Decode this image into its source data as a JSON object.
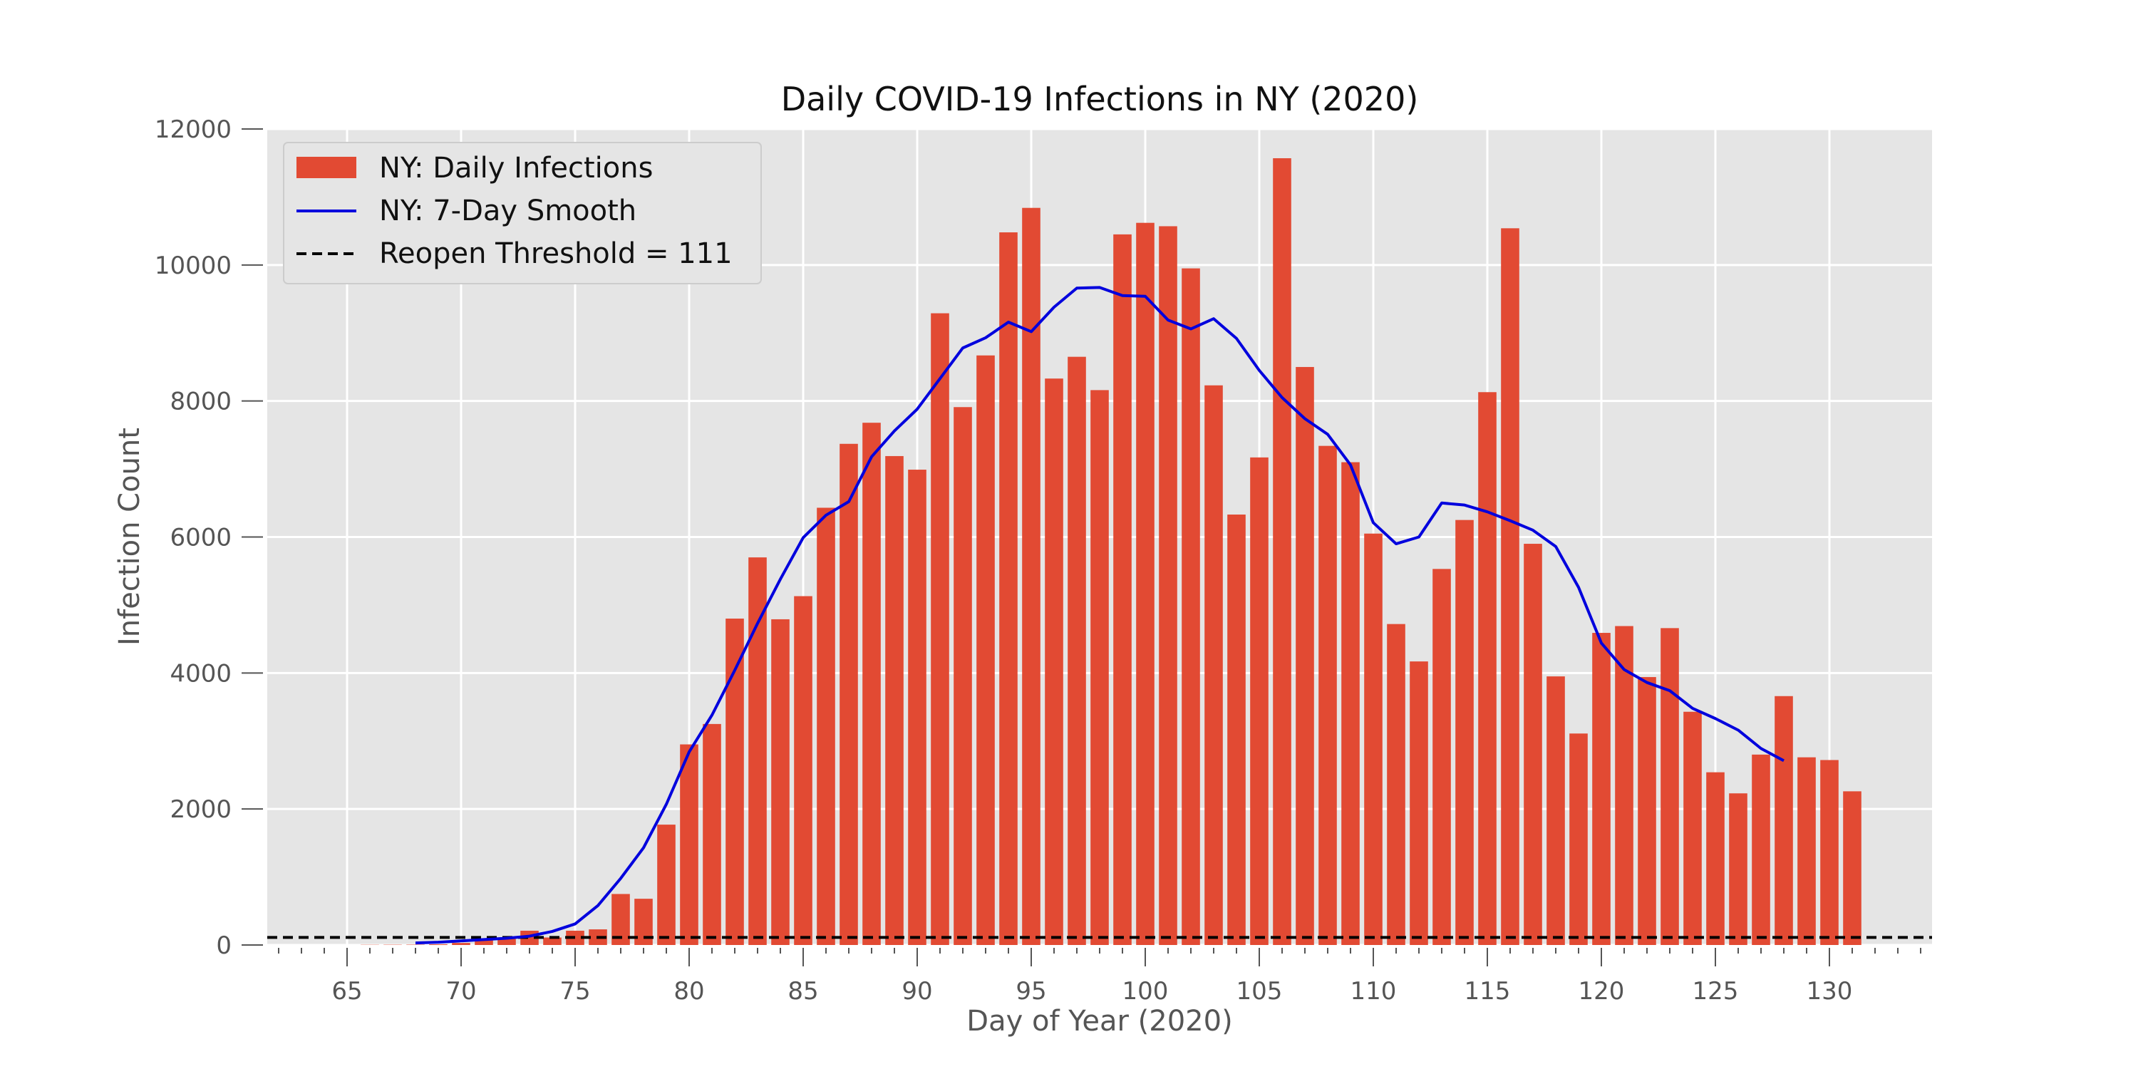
{
  "chart_data": {
    "type": "bar",
    "title": "Daily COVID-19 Infections in NY (2020)",
    "xlabel": "Day of Year (2020)",
    "ylabel": "Infection Count",
    "xlim": [
      61.5,
      134.5
    ],
    "ylim": [
      0,
      12000
    ],
    "xticks": [
      65,
      70,
      75,
      80,
      85,
      90,
      95,
      100,
      105,
      110,
      115,
      120,
      125,
      130
    ],
    "yticks": [
      0,
      2000,
      4000,
      6000,
      8000,
      10000,
      12000
    ],
    "grid": true,
    "legend_position": "top-left",
    "bars": {
      "name": "NY: Daily Infections",
      "color": "#E24A33",
      "x": [
        66,
        67,
        68,
        69,
        70,
        71,
        72,
        73,
        74,
        75,
        76,
        77,
        78,
        79,
        80,
        81,
        82,
        83,
        84,
        85,
        86,
        87,
        88,
        89,
        90,
        91,
        92,
        93,
        94,
        95,
        96,
        97,
        98,
        99,
        100,
        101,
        102,
        103,
        104,
        105,
        106,
        107,
        108,
        109,
        110,
        111,
        112,
        113,
        114,
        115,
        116,
        117,
        118,
        119,
        120,
        121,
        122,
        123,
        124,
        125,
        126,
        127,
        128,
        129,
        130,
        131
      ],
      "values": [
        3,
        4,
        5,
        10,
        30,
        70,
        90,
        210,
        110,
        210,
        230,
        750,
        680,
        1770,
        2950,
        3250,
        4800,
        5700,
        4790,
        5130,
        6430,
        7370,
        7680,
        7190,
        6990,
        9290,
        7910,
        8670,
        10480,
        10840,
        8330,
        8650,
        8160,
        10450,
        10620,
        10570,
        9950,
        8230,
        6330,
        7170,
        11570,
        8500,
        7340,
        7100,
        6050,
        4720,
        4170,
        5530,
        6250,
        8130,
        10540,
        5900,
        3950,
        3110,
        4590,
        4690,
        3940,
        4660,
        3430,
        2540,
        2230,
        2800,
        3660,
        2760,
        2720,
        2260
      ]
    },
    "line": {
      "name": "NY: 7-Day Smooth",
      "color": "#0000DD",
      "x": [
        68,
        69,
        70,
        71,
        72,
        73,
        74,
        75,
        76,
        77,
        78,
        79,
        80,
        81,
        82,
        83,
        84,
        85,
        86,
        87,
        88,
        89,
        90,
        91,
        92,
        93,
        94,
        95,
        96,
        97,
        98,
        99,
        100,
        101,
        102,
        103,
        104,
        105,
        106,
        107,
        108,
        109,
        110,
        111,
        112,
        113,
        114,
        115,
        116,
        117,
        118,
        119,
        120,
        121,
        122,
        123,
        124,
        125,
        126,
        127,
        128
      ],
      "values": [
        30,
        40,
        60,
        80,
        100,
        130,
        200,
        310,
        580,
        980,
        1430,
        2070,
        2840,
        3380,
        4040,
        4730,
        5380,
        5990,
        6320,
        6520,
        7180,
        7560,
        7880,
        8330,
        8780,
        8930,
        9160,
        9020,
        9380,
        9660,
        9670,
        9550,
        9540,
        9190,
        9060,
        9210,
        8920,
        8450,
        8050,
        7740,
        7510,
        7060,
        6210,
        5900,
        6000,
        6500,
        6470,
        6370,
        6240,
        6100,
        5860,
        5260,
        4440,
        4050,
        3860,
        3740,
        3480,
        3330,
        3160,
        2890,
        2710
      ]
    },
    "threshold": {
      "name": "Reopen Threshold = 111",
      "value": 111,
      "color": "#000000"
    }
  }
}
